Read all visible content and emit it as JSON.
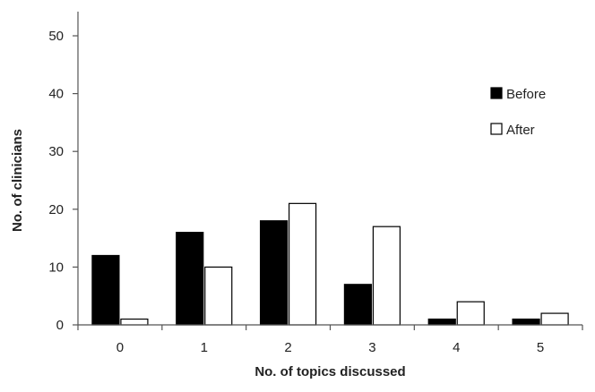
{
  "chart_data": {
    "type": "bar",
    "categories": [
      "0",
      "1",
      "2",
      "3",
      "4",
      "5"
    ],
    "series": [
      {
        "name": "Before",
        "values": [
          12,
          16,
          18,
          7,
          1,
          1
        ],
        "color": "#000000"
      },
      {
        "name": "After",
        "values": [
          1,
          10,
          21,
          17,
          4,
          2
        ],
        "color": "#ffffff"
      }
    ],
    "xlabel": "No. of topics discussed",
    "ylabel": "No. of clinicians",
    "ylim": [
      0,
      50
    ],
    "yticks": [
      0,
      10,
      20,
      30,
      40,
      50
    ],
    "grid": false,
    "legend_position": "right"
  }
}
